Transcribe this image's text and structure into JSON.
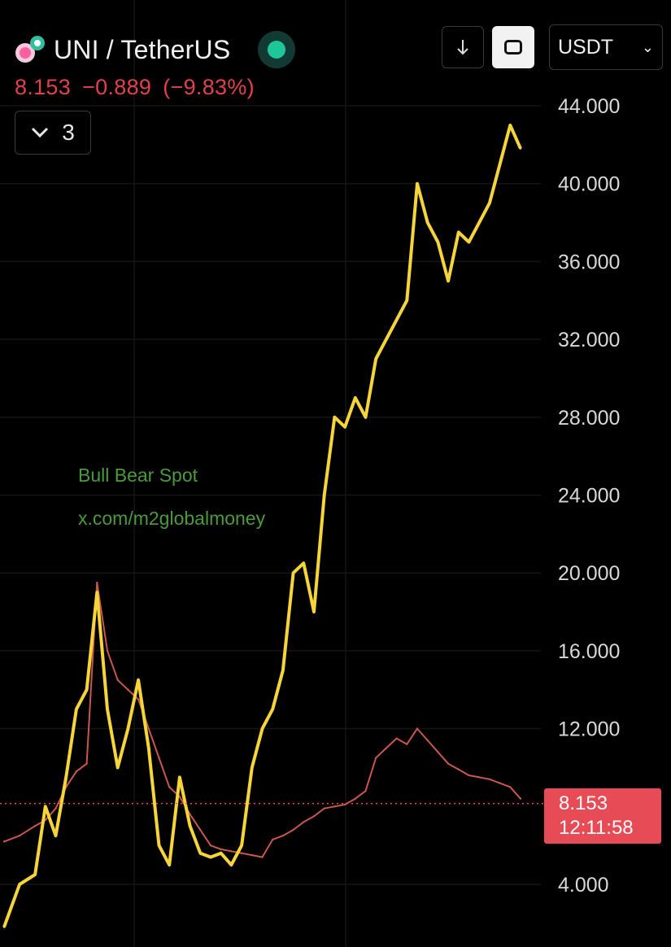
{
  "header": {
    "title": "UNI / TetherUS",
    "price": "8.153",
    "change": "−0.889",
    "change_pct": "(−9.83%)",
    "indicators_count": "3",
    "currency_select": "USDT",
    "live_color": "#1ec79a"
  },
  "watermark": {
    "line1": "Bull Bear Spot",
    "line2": "x.com/m2globalmoney"
  },
  "price_tag": {
    "price": "8.153",
    "countdown": "12:11:58",
    "color": "#e74c56"
  },
  "chart_data": {
    "type": "line",
    "yaxis": {
      "ticks": [
        "44.000",
        "40.000",
        "36.000",
        "32.000",
        "28.000",
        "24.000",
        "20.000",
        "16.000",
        "12.000",
        "4.000"
      ],
      "range": [
        2.5,
        45
      ]
    },
    "x": [
      0,
      3,
      6,
      8,
      10,
      12,
      14,
      16,
      18,
      20,
      22,
      24,
      26,
      28,
      30,
      32,
      34,
      36,
      38,
      40,
      42,
      44,
      46,
      48,
      50,
      52,
      54,
      56,
      58,
      60,
      62,
      64,
      66,
      68,
      70,
      72,
      74,
      76,
      78,
      80,
      82,
      84,
      86,
      88,
      90,
      92,
      94,
      96,
      98,
      100
    ],
    "series": [
      {
        "color": "#f5d53a",
        "values": [
          1.8,
          4,
          4.5,
          8,
          6.5,
          9.5,
          13,
          14,
          19,
          13,
          10,
          12,
          14.5,
          11,
          6,
          5,
          9.5,
          7,
          5.6,
          5.4,
          5.6,
          5,
          6,
          10,
          12,
          13,
          15,
          20,
          20.5,
          18,
          24,
          28,
          27.5,
          29,
          28,
          31,
          32,
          33,
          34,
          40,
          38,
          37,
          35,
          37.5,
          37,
          38,
          39,
          41,
          43,
          41.8
        ]
      },
      {
        "color": "#c8574f",
        "values": [
          6.2,
          6.5,
          7.0,
          7.3,
          7.9,
          9.0,
          9.8,
          10.2,
          19.5,
          16.0,
          14.5,
          14.0,
          13.5,
          12.0,
          10.5,
          9.0,
          8.5,
          7.6,
          6.8,
          6.0,
          5.8,
          5.7,
          5.6,
          5.5,
          5.4,
          6.3,
          6.5,
          6.8,
          7.2,
          7.5,
          7.9,
          8.0,
          8.1,
          8.4,
          8.8,
          10.5,
          11.0,
          11.5,
          11.2,
          12.0,
          11.4,
          10.8,
          10.2,
          9.9,
          9.6,
          9.5,
          9.4,
          9.2,
          9.0,
          8.4
        ]
      }
    ],
    "last_price": 8.153
  }
}
